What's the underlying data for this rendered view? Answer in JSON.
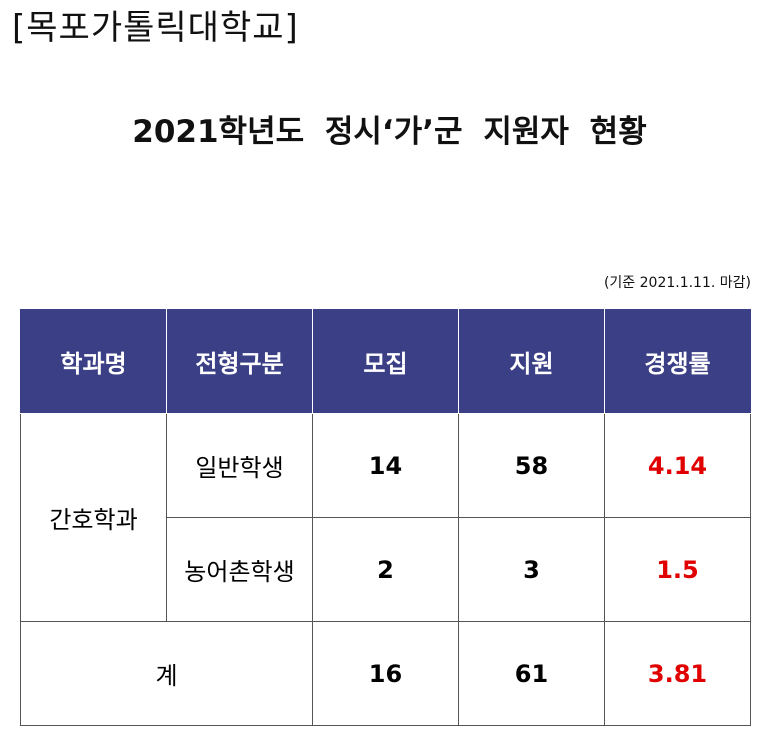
{
  "header": "[목포가톨릭대학교]",
  "title": "2021학년도 정시‘가’군 지원자 현황",
  "note": "(기준 2021.1.11. 마감)",
  "colors": {
    "header_bg": "#3b3f85",
    "rate": "#e00000"
  },
  "table": {
    "columns": [
      "학과명",
      "전형구분",
      "모집",
      "지원",
      "경쟁률"
    ],
    "department": "간호학과",
    "rows": [
      {
        "type": "일반학생",
        "quota": "14",
        "applicants": "58",
        "rate": "4.14"
      },
      {
        "type": "농어촌학생",
        "quota": "2",
        "applicants": "3",
        "rate": "1.5"
      }
    ],
    "total": {
      "label": "계",
      "quota": "16",
      "applicants": "61",
      "rate": "3.81"
    }
  }
}
